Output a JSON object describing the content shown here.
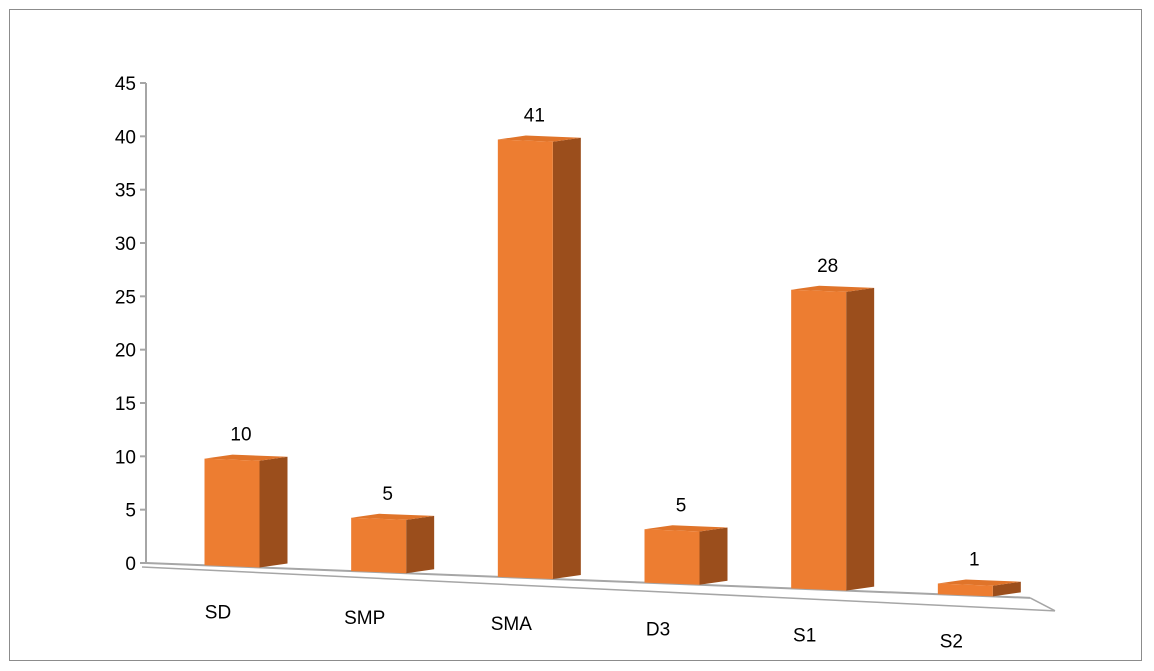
{
  "chart_data": {
    "type": "bar",
    "style": "3d-column",
    "categories": [
      "SD",
      "SMP",
      "SMA",
      "D3",
      "S1",
      "S2"
    ],
    "values": [
      10,
      5,
      41,
      5,
      28,
      1
    ],
    "data_labels": [
      "10",
      "5",
      "41",
      "5",
      "28",
      "1"
    ],
    "title": "",
    "xlabel": "",
    "ylabel": "",
    "ylim": [
      0,
      45
    ],
    "yticks": [
      "0",
      "5",
      "10",
      "15",
      "20",
      "25",
      "30",
      "35",
      "40",
      "45"
    ],
    "grid": false,
    "legend": "none"
  },
  "colors": {
    "bar_front": "#ED7D31",
    "bar_side": "#9B4E1C",
    "bar_top": "#E0742A",
    "axis": "#a6a6a6",
    "frame": "#8c8c8c"
  }
}
